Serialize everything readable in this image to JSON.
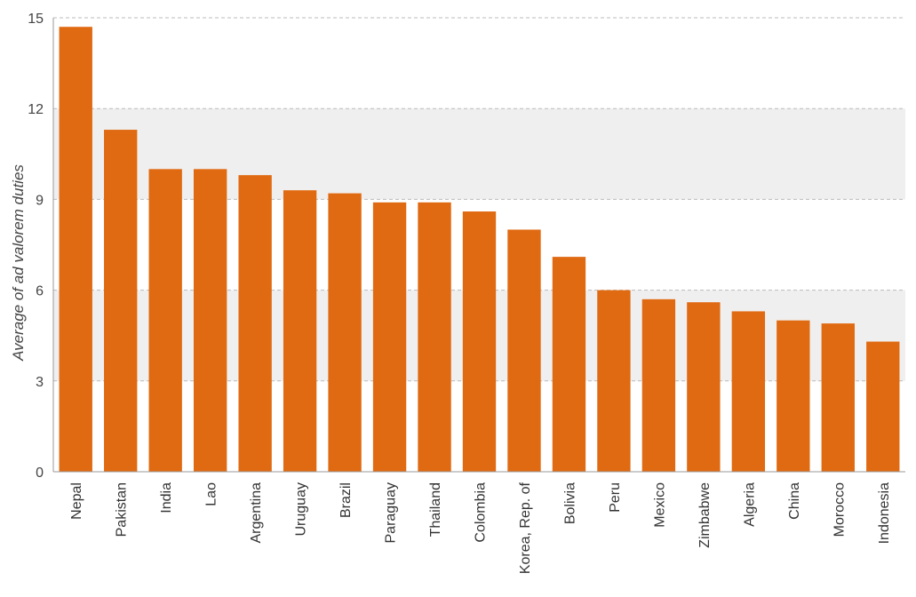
{
  "chart_data": {
    "type": "bar",
    "title": "",
    "xlabel": "",
    "ylabel": "Average of ad valorem duties",
    "ylim": [
      0,
      15
    ],
    "yticks": [
      0,
      3,
      6,
      9,
      12,
      15
    ],
    "grid": true,
    "legend": "none",
    "colors": {
      "bar": "#E06A12",
      "band": "#F0EFEF",
      "grid": "#BBBBBB"
    },
    "categories": [
      "Nepal",
      "Pakistan",
      "India",
      "Lao",
      "Argentina",
      "Uruguay",
      "Brazil",
      "Paraguay",
      "Thailand",
      "Colombia",
      "Korea, Rep. of",
      "Bolivia",
      "Peru",
      "Mexico",
      "Zimbabwe",
      "Algeria",
      "China",
      "Morocco",
      "Indonesia"
    ],
    "values": [
      14.7,
      11.3,
      10.0,
      10.0,
      9.8,
      9.3,
      9.2,
      8.9,
      8.9,
      8.6,
      8.0,
      7.1,
      6.0,
      5.7,
      5.6,
      5.3,
      5.0,
      4.9,
      4.3
    ]
  }
}
